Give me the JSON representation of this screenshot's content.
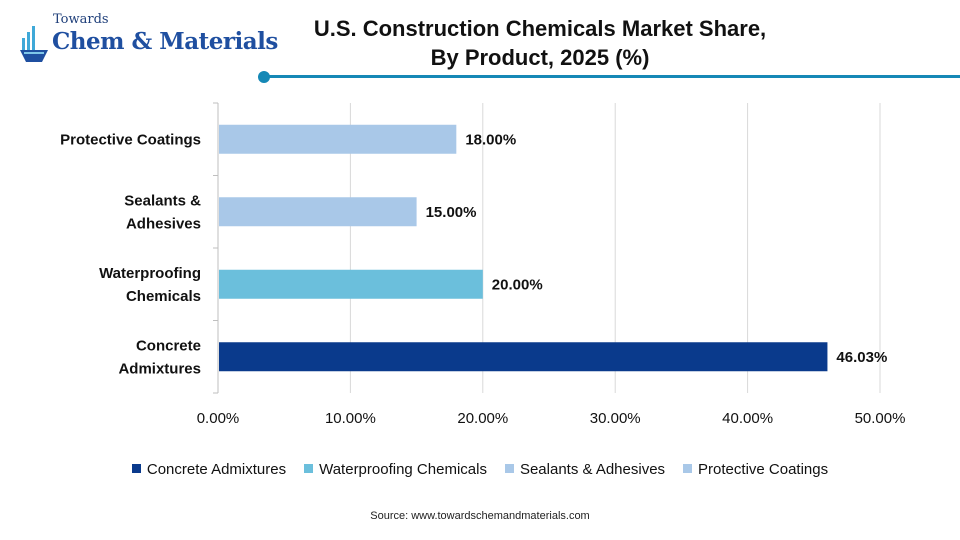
{
  "logo": {
    "line1": "Towards",
    "line2": "Chem & Materials"
  },
  "title_lines": [
    "U.S. Construction Chemicals Market Share,",
    "By Product, 2025 (%)"
  ],
  "source": "Source: www.towardschemandmaterials.com",
  "colors": {
    "accent": "#1588b6",
    "grid": "#d9d9d9"
  },
  "chart_data": {
    "type": "bar",
    "orientation": "horizontal",
    "title": "U.S. Construction Chemicals Market Share, By Product, 2025 (%)",
    "categories": [
      "Protective Coatings",
      "Sealants & Adhesives",
      "Waterproofing Chemicals",
      "Concrete Admixtures"
    ],
    "category_label_lines": [
      [
        "Protective Coatings"
      ],
      [
        "Sealants &",
        "Adhesives"
      ],
      [
        "Waterproofing",
        "Chemicals"
      ],
      [
        "Concrete",
        "Admixtures"
      ]
    ],
    "values": [
      18.0,
      15.0,
      20.0,
      46.03
    ],
    "value_labels": [
      "18.00%",
      "15.00%",
      "20.00%",
      "46.03%"
    ],
    "bar_colors": [
      "#a9c8e8",
      "#a9c8e8",
      "#6bbfdc",
      "#0a3a8c"
    ],
    "xlim": [
      0,
      50
    ],
    "xticks": [
      0,
      10,
      20,
      30,
      40,
      50
    ],
    "xtick_labels": [
      "0.00%",
      "10.00%",
      "20.00%",
      "30.00%",
      "40.00%",
      "50.00%"
    ],
    "grid": true,
    "legend_position": "bottom",
    "legend": [
      {
        "label": "Concrete Admixtures",
        "color": "#0a3a8c"
      },
      {
        "label": "Waterproofing Chemicals",
        "color": "#6bbfdc"
      },
      {
        "label": "Sealants & Adhesives",
        "color": "#a9c8e8"
      },
      {
        "label": "Protective Coatings",
        "color": "#a9c8e8"
      }
    ]
  }
}
